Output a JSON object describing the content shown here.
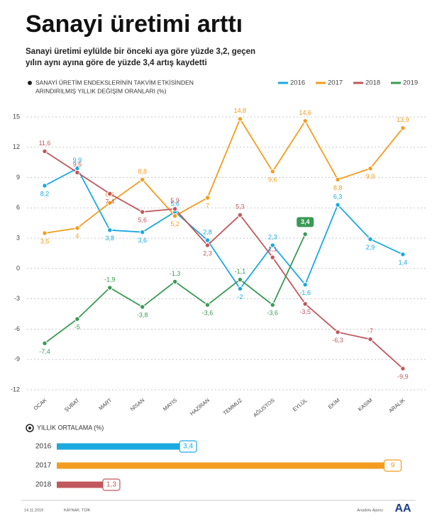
{
  "header": {
    "title": "Sanayi üretimi arttı",
    "subtitle_lines": [
      "Sanayi üretimi eylülde bir önceki aya göre yüzde 3,2, geçen",
      "yılın aynı ayına göre de yüzde 3,4 artış kaydetti"
    ]
  },
  "chart_data": [
    {
      "type": "line",
      "title_lines": [
        "SANAYİ ÜRETİM ENDEKSLERİNİN TAKVİM ETKİSİNDEN",
        "ARINDIRILMIŞ YILLIK DEĞİŞİM ORANLARI (%)"
      ],
      "categories": [
        "OCAK",
        "ŞUBAT",
        "MART",
        "NİSAN",
        "MAYIS",
        "HAZİRAN",
        "TEMMUZ",
        "AĞUSTOS",
        "EYLÜL",
        "EKİM",
        "KASIM",
        "ARALIK"
      ],
      "ylim": [
        -12,
        15
      ],
      "yticks": [
        15,
        12,
        9,
        6,
        3,
        0,
        -3,
        -6,
        -9,
        -12
      ],
      "grid": true,
      "legend": "top-right",
      "series": [
        {
          "name": "2016",
          "color": "#1ba9e0",
          "values": [
            8.2,
            9.9,
            3.8,
            3.6,
            5.6,
            2.8,
            -2,
            2.3,
            -1.6,
            6.3,
            2.9,
            1.4
          ],
          "value_labels": [
            "8,2",
            "9,9",
            "3,8",
            "3,6",
            "5,6",
            "2,8",
            "-2",
            "2,3",
            "-1,6",
            "6,3",
            "2,9",
            "1,4"
          ]
        },
        {
          "name": "2017",
          "color": "#f39c1f",
          "values": [
            3.5,
            4,
            6.5,
            8.8,
            5.2,
            7,
            14.8,
            9.6,
            14.6,
            8.8,
            9.9,
            13.9
          ],
          "value_labels": [
            "3,5",
            "4",
            "6,5",
            "8,8",
            "5,2",
            "7",
            "14,8",
            "9,6",
            "14,6",
            "8,8",
            "9,9",
            "13,9"
          ]
        },
        {
          "name": "2018",
          "color": "#c0575c",
          "values": [
            11.6,
            9.5,
            7.4,
            5.6,
            5.9,
            2.3,
            5.3,
            1.1,
            -3.5,
            -6.3,
            -7,
            -9.9
          ],
          "value_labels": [
            "11,6",
            "9,5",
            "7,4",
            "5,6",
            "5,9",
            "2,3",
            "5,3",
            "1,1",
            "-3,5",
            "-6,3",
            "-7",
            "-9,9"
          ]
        },
        {
          "name": "2019",
          "color": "#3a9a55",
          "values": [
            -7.4,
            -5,
            -1.9,
            -3.8,
            -1.3,
            -3.6,
            -1.1,
            -3.6,
            3.4,
            null,
            null,
            null
          ],
          "value_labels": [
            "-7,4",
            "-5",
            "-1,9",
            "-3,8",
            "-1,3",
            "-3,6",
            "-1,1",
            "-3,6",
            "3,4",
            null,
            null,
            null
          ]
        }
      ]
    },
    {
      "type": "hbar",
      "title": "YILLIK ORTALAMA (%)",
      "categories": [
        "2016",
        "2017",
        "2018"
      ],
      "values": [
        3.4,
        9,
        1.3
      ],
      "value_labels": [
        "3,4",
        "9",
        "1,3"
      ],
      "colors": [
        "#1ba9e0",
        "#f39c1f",
        "#c0575c"
      ],
      "xlim": [
        0,
        10
      ]
    }
  ],
  "footer": {
    "date": "14.11.2019",
    "source": "KAYNAK: TÜİK",
    "agency": "Anadolu Ajansı",
    "logo": "AA"
  }
}
